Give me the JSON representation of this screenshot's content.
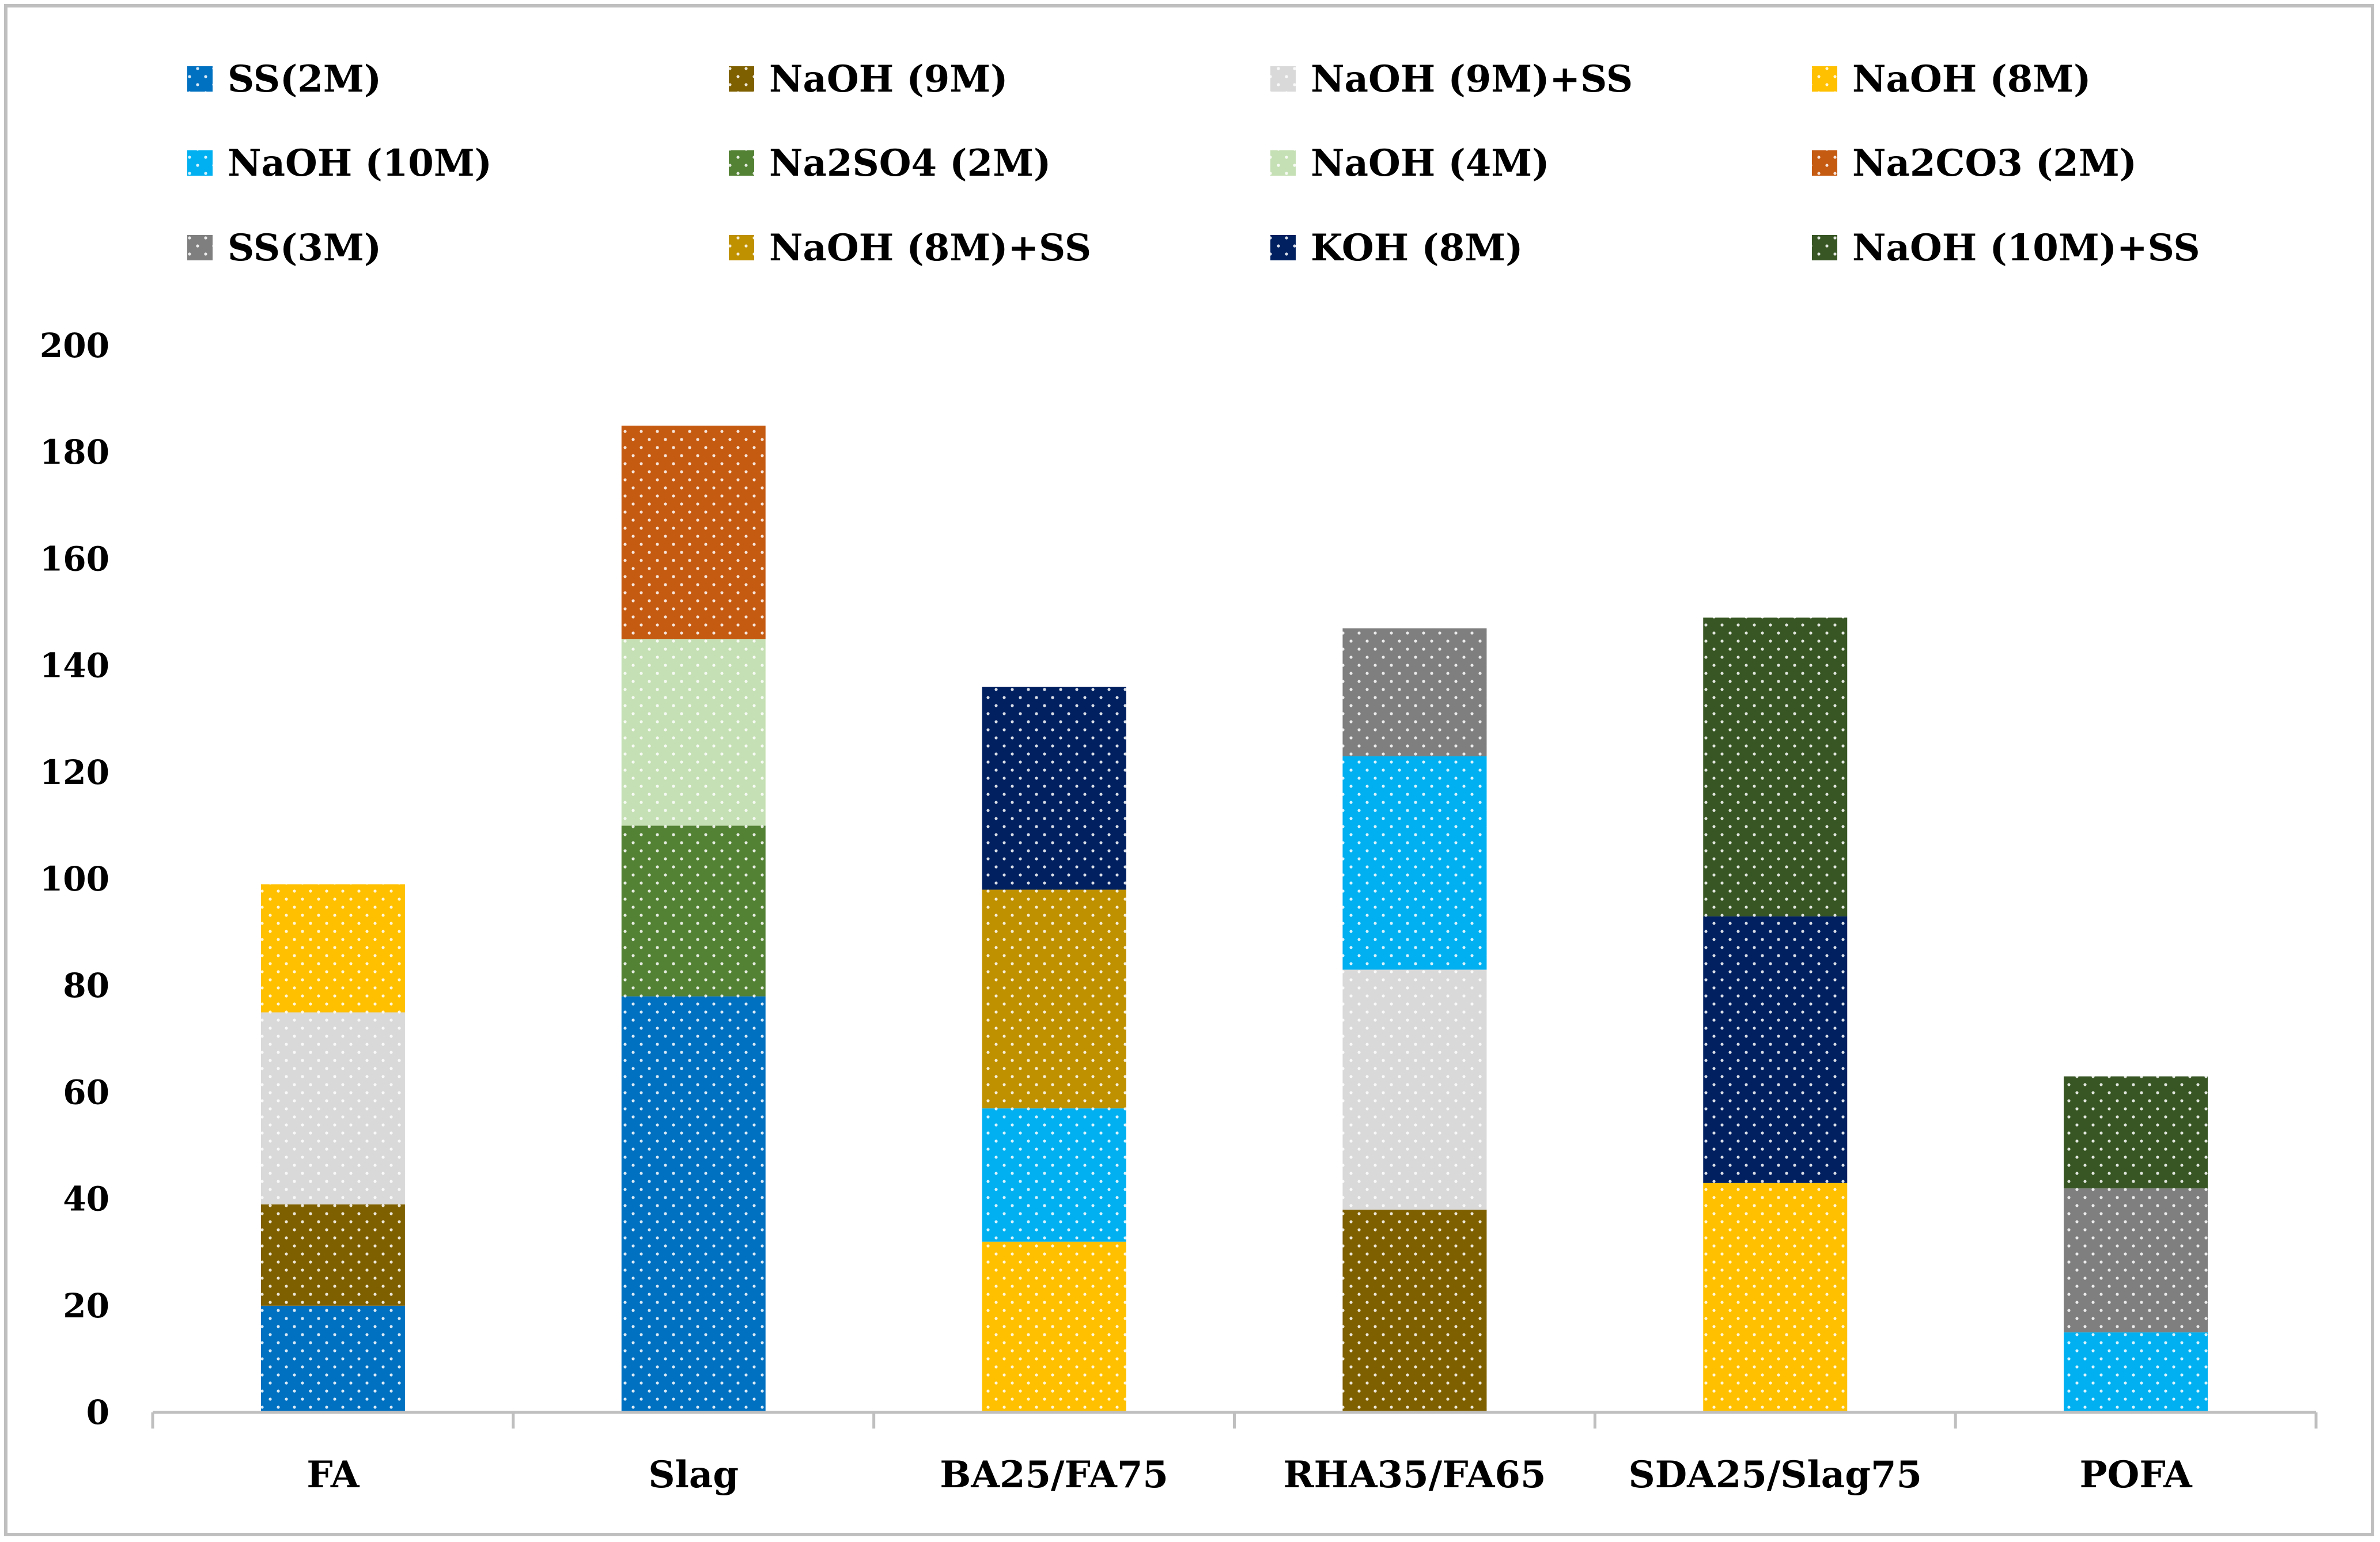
{
  "chart_data": {
    "type": "bar",
    "stacked": true,
    "title": "",
    "xlabel": "",
    "ylabel": "",
    "ylim": [
      0,
      200
    ],
    "yticks": [
      0,
      20,
      40,
      60,
      80,
      100,
      120,
      140,
      160,
      180,
      200
    ],
    "grid": false,
    "legend_position": "top",
    "categories": [
      "FA",
      "Slag",
      "BA25/FA75",
      "RHA35/FA65",
      "SDA25/Slag75",
      "POFA"
    ],
    "series": [
      {
        "name": "SS(2M)",
        "color": "#0070C0",
        "values": [
          20,
          78,
          0,
          0,
          0,
          0
        ]
      },
      {
        "name": "NaOH (9M)",
        "color": "#7F6000",
        "values": [
          19,
          0,
          0,
          38,
          0,
          0
        ]
      },
      {
        "name": "NaOH (9M)+SS",
        "color": "#D9D9D9",
        "values": [
          36,
          0,
          0,
          45,
          0,
          0
        ]
      },
      {
        "name": "NaOH (8M)",
        "color": "#FFC000",
        "values": [
          24,
          0,
          32,
          0,
          43,
          0
        ]
      },
      {
        "name": "NaOH (10M)",
        "color": "#00B0F0",
        "values": [
          0,
          0,
          25,
          40,
          0,
          15
        ]
      },
      {
        "name": "Na2SO4 (2M)",
        "color": "#548235",
        "values": [
          0,
          32,
          0,
          0,
          0,
          0
        ]
      },
      {
        "name": "NaOH (4M)",
        "color": "#C5E0B4",
        "values": [
          0,
          35,
          0,
          0,
          0,
          0
        ]
      },
      {
        "name": "Na2CO3 (2M)",
        "color": "#C55A11",
        "values": [
          0,
          40,
          0,
          0,
          0,
          0
        ]
      },
      {
        "name": "SS(3M)",
        "color": "#7F7F7F",
        "values": [
          0,
          0,
          0,
          24,
          0,
          27
        ]
      },
      {
        "name": "NaOH (8M)+SS",
        "color": "#BF9000",
        "values": [
          0,
          0,
          41,
          0,
          0,
          0
        ]
      },
      {
        "name": "KOH (8M)",
        "color": "#002060",
        "values": [
          0,
          0,
          38,
          0,
          50,
          0
        ]
      },
      {
        "name": "NaOH (10M)+SS",
        "color": "#375623",
        "values": [
          0,
          0,
          0,
          0,
          56,
          21
        ]
      }
    ]
  }
}
